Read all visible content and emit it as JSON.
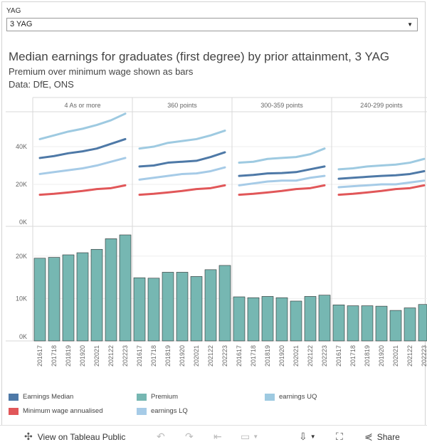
{
  "filter": {
    "label": "YAG",
    "value": "3 YAG"
  },
  "header": {
    "title": "Median earnings for graduates (first degree) by prior attainment, 3 YAG",
    "subtitle": "Premium over minimum wage shown as bars",
    "source": "Data: DfE, ONS"
  },
  "chart_data": {
    "type": "line+bar",
    "categories": [
      "201617",
      "201718",
      "201819",
      "201920",
      "202021",
      "202122",
      "202223"
    ],
    "panels": [
      "4 As or more",
      "360 points",
      "300-359 points",
      "240-299 points"
    ],
    "line_axis": {
      "ticks": [
        "40K",
        "20K",
        "0K"
      ],
      "ylim": [
        0,
        57000
      ]
    },
    "bar_axis": {
      "ticks": [
        "20K",
        "10K",
        "0K"
      ],
      "ylim": [
        0,
        25000
      ]
    },
    "series": [
      {
        "name": "earnings UQ",
        "color": "#9ecae1",
        "panels": [
          [
            44000,
            46000,
            48000,
            49500,
            51500,
            54000,
            57500
          ],
          [
            39000,
            40000,
            42000,
            43000,
            44000,
            46000,
            48500
          ],
          [
            31500,
            32000,
            33500,
            34000,
            34500,
            36000,
            39000
          ],
          [
            28000,
            28500,
            29500,
            30000,
            30500,
            31500,
            33500
          ]
        ]
      },
      {
        "name": "Earnings Median",
        "color": "#4e79a7",
        "panels": [
          [
            34000,
            35000,
            36500,
            37500,
            39000,
            41500,
            44000
          ],
          [
            29500,
            30000,
            31500,
            32000,
            32500,
            34500,
            37000
          ],
          [
            24500,
            25000,
            25800,
            26000,
            26500,
            28000,
            29500
          ],
          [
            23000,
            23500,
            24000,
            24500,
            24800,
            25500,
            27000
          ]
        ]
      },
      {
        "name": "earnings LQ",
        "color": "#a6cbe7",
        "panels": [
          [
            25500,
            26500,
            27500,
            28500,
            30000,
            32000,
            34000
          ],
          [
            22500,
            23500,
            24500,
            25500,
            25800,
            27000,
            29000
          ],
          [
            19500,
            20500,
            21500,
            22000,
            22000,
            23500,
            24500
          ],
          [
            18500,
            19000,
            19500,
            20000,
            20000,
            21000,
            22000
          ]
        ]
      },
      {
        "name": "Minimum wage annualised",
        "color": "#e15759",
        "panels": [
          [
            14500,
            15000,
            15700,
            16500,
            17500,
            18000,
            19500
          ],
          [
            14500,
            15000,
            15700,
            16500,
            17500,
            18000,
            19500
          ],
          [
            14500,
            15000,
            15700,
            16500,
            17500,
            18000,
            19500
          ],
          [
            14500,
            15000,
            15700,
            16500,
            17500,
            18000,
            19500
          ]
        ]
      }
    ],
    "bars": {
      "name": "Premium",
      "color": "#76b7b2",
      "panels": [
        [
          19500,
          19700,
          20300,
          20800,
          21600,
          24100,
          25000
        ],
        [
          14900,
          14800,
          16200,
          16200,
          15200,
          16800,
          17800
        ],
        [
          10400,
          10200,
          10500,
          10200,
          9400,
          10500,
          10800
        ],
        [
          8500,
          8300,
          8300,
          8200,
          7200,
          7800,
          8600
        ]
      ]
    },
    "legend": [
      "Earnings Median",
      "Premium",
      "earnings UQ",
      "Minimum wage annualised",
      "earnings LQ"
    ]
  },
  "legend": [
    {
      "label": "Earnings Median",
      "color": "#4e79a7"
    },
    {
      "label": "Premium",
      "color": "#76b7b2"
    },
    {
      "label": "earnings UQ",
      "color": "#9ecae1"
    },
    {
      "label": "Minimum wage annualised",
      "color": "#e15759"
    },
    {
      "label": "earnings LQ",
      "color": "#a6cbe7"
    }
  ],
  "toolbar": {
    "view_label": "View on Tableau Public",
    "share_label": "Share",
    "icons": [
      "tableau-icon",
      "undo-icon",
      "redo-icon",
      "revert-icon",
      "pause-icon",
      "download-icon",
      "fullscreen-icon",
      "share-icon"
    ]
  }
}
